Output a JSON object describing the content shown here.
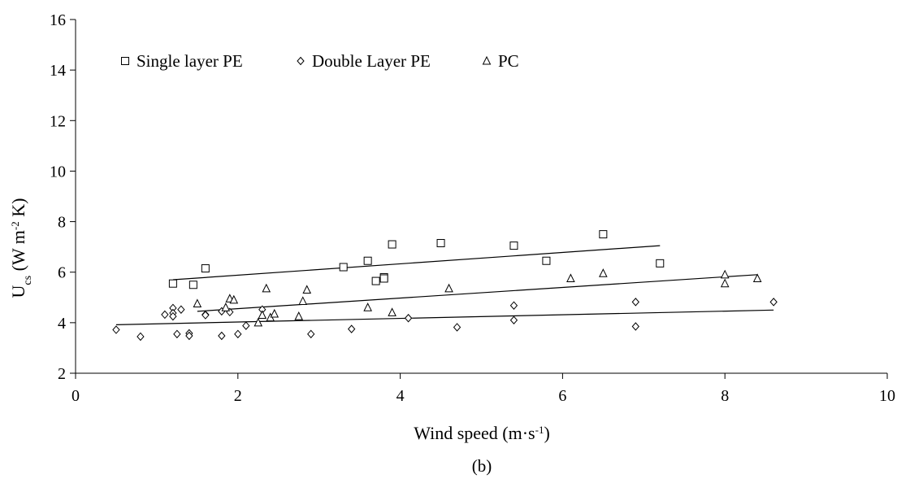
{
  "chart_data": {
    "type": "scatter",
    "xlabel": {
      "base": "Wind speed (m·s",
      "sup": "-1",
      "tail": ")"
    },
    "ylabel": {
      "base": "U",
      "sub": "cs",
      "mid": " (W m",
      "sup": "-2",
      "tail": " K)"
    },
    "xlim": [
      0,
      10
    ],
    "ylim": [
      2,
      16
    ],
    "xticks": [
      0,
      2,
      4,
      6,
      8,
      10
    ],
    "yticks": [
      2,
      4,
      6,
      8,
      10,
      12,
      14,
      16
    ],
    "grid": false,
    "legend_position": "top-left",
    "caption": "(b)",
    "series": [
      {
        "name": "Single layer PE",
        "marker": "square",
        "points": [
          [
            1.2,
            5.55
          ],
          [
            1.45,
            5.5
          ],
          [
            1.6,
            6.15
          ],
          [
            3.3,
            6.2
          ],
          [
            3.6,
            6.45
          ],
          [
            3.7,
            5.65
          ],
          [
            3.8,
            5.8
          ],
          [
            3.8,
            5.75
          ],
          [
            3.9,
            7.1
          ],
          [
            4.5,
            7.15
          ],
          [
            5.4,
            7.05
          ],
          [
            5.8,
            6.45
          ],
          [
            6.5,
            7.5
          ],
          [
            7.2,
            6.35
          ]
        ],
        "trendline": [
          [
            1.2,
            5.7
          ],
          [
            7.2,
            7.05
          ]
        ]
      },
      {
        "name": "Double Layer PE",
        "marker": "diamond",
        "points": [
          [
            0.5,
            3.72
          ],
          [
            0.8,
            3.45
          ],
          [
            1.1,
            4.32
          ],
          [
            1.2,
            4.58
          ],
          [
            1.2,
            4.38
          ],
          [
            1.2,
            4.25
          ],
          [
            1.25,
            3.55
          ],
          [
            1.3,
            4.52
          ],
          [
            1.4,
            3.58
          ],
          [
            1.4,
            3.48
          ],
          [
            1.6,
            4.32
          ],
          [
            1.6,
            4.3
          ],
          [
            1.8,
            4.45
          ],
          [
            1.8,
            3.48
          ],
          [
            1.9,
            4.42
          ],
          [
            2.0,
            3.55
          ],
          [
            2.1,
            3.88
          ],
          [
            2.3,
            4.52
          ],
          [
            2.9,
            3.55
          ],
          [
            3.4,
            3.75
          ],
          [
            4.1,
            4.18
          ],
          [
            4.7,
            3.82
          ],
          [
            5.4,
            4.68
          ],
          [
            5.4,
            4.1
          ],
          [
            6.9,
            4.82
          ],
          [
            6.9,
            3.85
          ],
          [
            8.6,
            4.82
          ]
        ],
        "trendline": [
          [
            0.5,
            3.92
          ],
          [
            8.6,
            4.5
          ]
        ]
      },
      {
        "name": "PC",
        "marker": "triangle",
        "points": [
          [
            1.5,
            4.75
          ],
          [
            1.85,
            4.6
          ],
          [
            1.9,
            4.95
          ],
          [
            1.95,
            4.9
          ],
          [
            2.25,
            4.0
          ],
          [
            2.3,
            4.3
          ],
          [
            2.35,
            5.35
          ],
          [
            2.4,
            4.2
          ],
          [
            2.45,
            4.35
          ],
          [
            2.75,
            4.25
          ],
          [
            2.8,
            4.85
          ],
          [
            2.85,
            5.3
          ],
          [
            3.6,
            4.6
          ],
          [
            3.9,
            4.4
          ],
          [
            4.6,
            5.35
          ],
          [
            6.1,
            5.75
          ],
          [
            6.5,
            5.95
          ],
          [
            8.0,
            5.9
          ],
          [
            8.0,
            5.55
          ],
          [
            8.4,
            5.75
          ]
        ],
        "trendline": [
          [
            1.5,
            4.45
          ],
          [
            8.4,
            5.9
          ]
        ]
      }
    ]
  }
}
